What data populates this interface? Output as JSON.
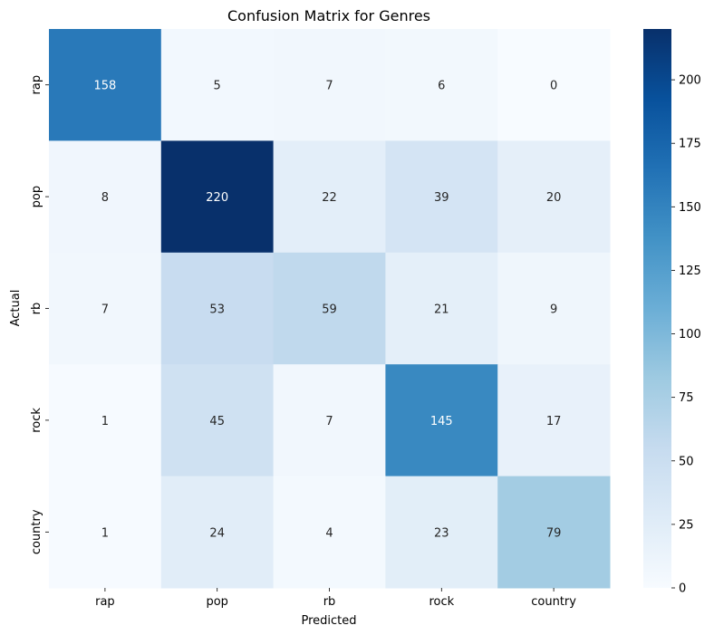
{
  "chart_data": {
    "type": "heatmap",
    "title": "Confusion Matrix for Genres",
    "xlabel": "Predicted",
    "ylabel": "Actual",
    "x_categories": [
      "rap",
      "pop",
      "rb",
      "rock",
      "country"
    ],
    "y_categories": [
      "rap",
      "pop",
      "rb",
      "rock",
      "country"
    ],
    "values": [
      [
        158,
        5,
        7,
        6,
        0
      ],
      [
        8,
        220,
        22,
        39,
        20
      ],
      [
        7,
        53,
        59,
        21,
        9
      ],
      [
        1,
        45,
        7,
        145,
        17
      ],
      [
        1,
        24,
        4,
        23,
        79
      ]
    ],
    "colormap": "Blues",
    "colorbar": {
      "range": [
        0,
        220
      ],
      "ticks": [
        0,
        25,
        50,
        75,
        100,
        125,
        150,
        175,
        200
      ]
    },
    "annotations": true
  }
}
